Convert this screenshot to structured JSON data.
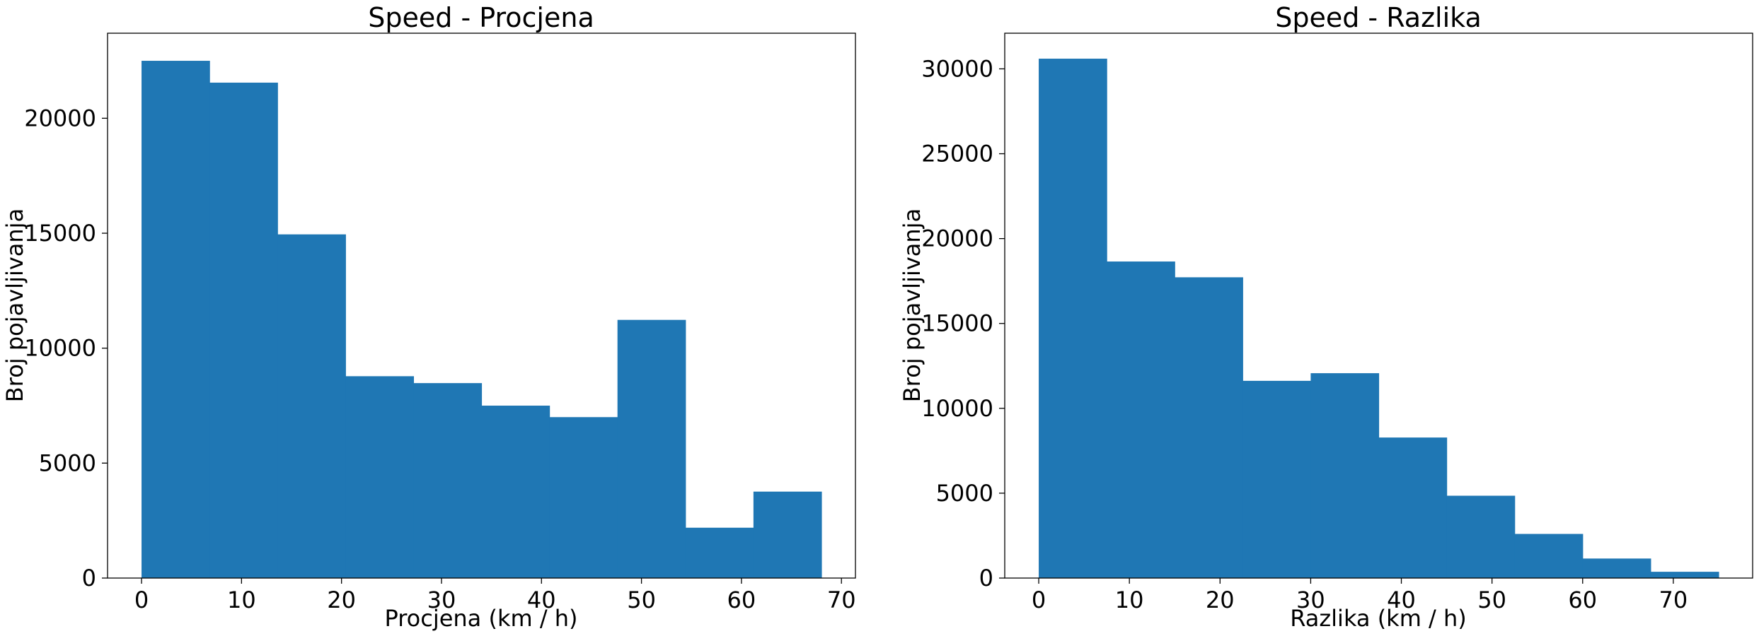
{
  "chart_data": [
    {
      "type": "bar",
      "title": "Speed - Procjena",
      "xlabel": "Procjena (km / h)",
      "ylabel": "Broj pojavljivanja",
      "color": "#1f77b4",
      "xlim": [
        -3.4,
        71.4
      ],
      "ylim": [
        0,
        23700
      ],
      "xticks": [
        0,
        10,
        20,
        30,
        40,
        50,
        60,
        70
      ],
      "yticks": [
        0,
        5000,
        10000,
        15000,
        20000
      ],
      "bin_edges": [
        0,
        6.8,
        13.6,
        20.4,
        27.2,
        34.0,
        40.8,
        47.6,
        54.4,
        61.2,
        68.0
      ],
      "values": [
        22500,
        21550,
        14950,
        8780,
        8480,
        7500,
        7000,
        11230,
        2190,
        3760
      ],
      "grid": false,
      "legend": "none"
    },
    {
      "type": "bar",
      "title": "Speed - Razlika",
      "xlabel": "Razlika (km / h)",
      "ylabel": "Broj pojavljivanja",
      "color": "#1f77b4",
      "xlim": [
        -3.75,
        78.75
      ],
      "ylim": [
        0,
        32100
      ],
      "xticks": [
        0,
        10,
        20,
        30,
        40,
        50,
        60,
        70
      ],
      "yticks": [
        0,
        5000,
        10000,
        15000,
        20000,
        25000,
        30000
      ],
      "bin_edges": [
        0,
        7.5,
        15,
        22.5,
        30,
        37.5,
        45,
        52.5,
        60,
        67.5,
        75
      ],
      "values": [
        30600,
        18650,
        17720,
        11620,
        12070,
        8280,
        4850,
        2600,
        1150,
        370
      ],
      "grid": false,
      "legend": "none"
    }
  ]
}
